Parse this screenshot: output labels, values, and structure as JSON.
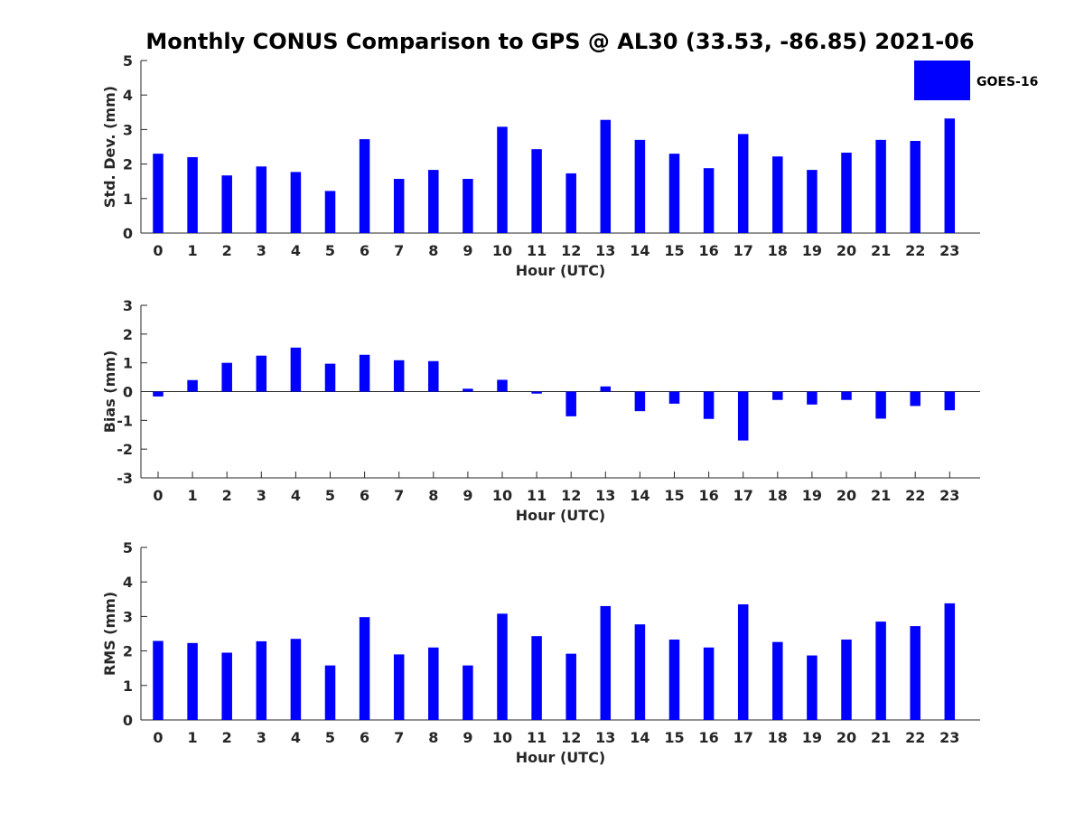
{
  "title": "Monthly CONUS Comparison to GPS @ AL30 (33.53, -86.85) 2021-06",
  "legend": {
    "label": "GOES-16",
    "color": "#0000ff"
  },
  "chart_data": [
    {
      "type": "bar",
      "xlabel": "Hour (UTC)",
      "ylabel": "Std. Dev. (mm)",
      "ylim": [
        0,
        5
      ],
      "yticks": [
        0,
        1,
        2,
        3,
        4,
        5
      ],
      "categories": [
        "0",
        "1",
        "2",
        "3",
        "4",
        "5",
        "6",
        "7",
        "8",
        "9",
        "10",
        "11",
        "12",
        "13",
        "14",
        "15",
        "16",
        "17",
        "18",
        "19",
        "20",
        "21",
        "22",
        "23"
      ],
      "series": [
        {
          "name": "GOES-16",
          "color": "#0000ff",
          "values": [
            2.3,
            2.2,
            1.67,
            1.93,
            1.77,
            1.22,
            2.72,
            1.57,
            1.83,
            1.57,
            3.08,
            2.43,
            1.73,
            3.28,
            2.7,
            2.3,
            1.88,
            2.87,
            2.22,
            1.83,
            2.33,
            2.7,
            2.67,
            3.32
          ]
        }
      ],
      "legend": "top-right",
      "grid": false
    },
    {
      "type": "bar",
      "xlabel": "Hour (UTC)",
      "ylabel": "Bias (mm)",
      "ylim": [
        -3,
        3
      ],
      "yticks": [
        -3,
        -2,
        -1,
        0,
        1,
        2,
        3
      ],
      "zero_line": true,
      "categories": [
        "0",
        "1",
        "2",
        "3",
        "4",
        "5",
        "6",
        "7",
        "8",
        "9",
        "10",
        "11",
        "12",
        "13",
        "14",
        "15",
        "16",
        "17",
        "18",
        "19",
        "20",
        "21",
        "22",
        "23"
      ],
      "series": [
        {
          "name": "GOES-16",
          "color": "#0000ff",
          "values": [
            -0.17,
            0.4,
            1.0,
            1.25,
            1.53,
            0.97,
            1.28,
            1.09,
            1.06,
            0.1,
            0.41,
            -0.07,
            -0.86,
            0.18,
            -0.68,
            -0.42,
            -0.95,
            -1.7,
            -0.29,
            -0.45,
            -0.29,
            -0.94,
            -0.5,
            -0.65
          ]
        }
      ],
      "grid": false
    },
    {
      "type": "bar",
      "xlabel": "Hour (UTC)",
      "ylabel": "RMS (mm)",
      "ylim": [
        0,
        5
      ],
      "yticks": [
        0,
        1,
        2,
        3,
        4,
        5
      ],
      "categories": [
        "0",
        "1",
        "2",
        "3",
        "4",
        "5",
        "6",
        "7",
        "8",
        "9",
        "10",
        "11",
        "12",
        "13",
        "14",
        "15",
        "16",
        "17",
        "18",
        "19",
        "20",
        "21",
        "22",
        "23"
      ],
      "series": [
        {
          "name": "GOES-16",
          "color": "#0000ff",
          "values": [
            2.29,
            2.23,
            1.95,
            2.28,
            2.35,
            1.58,
            2.98,
            1.9,
            2.1,
            1.58,
            3.08,
            2.43,
            1.92,
            3.3,
            2.77,
            2.33,
            2.1,
            3.35,
            2.26,
            1.87,
            2.33,
            2.85,
            2.72,
            3.38
          ]
        }
      ],
      "grid": false
    }
  ]
}
